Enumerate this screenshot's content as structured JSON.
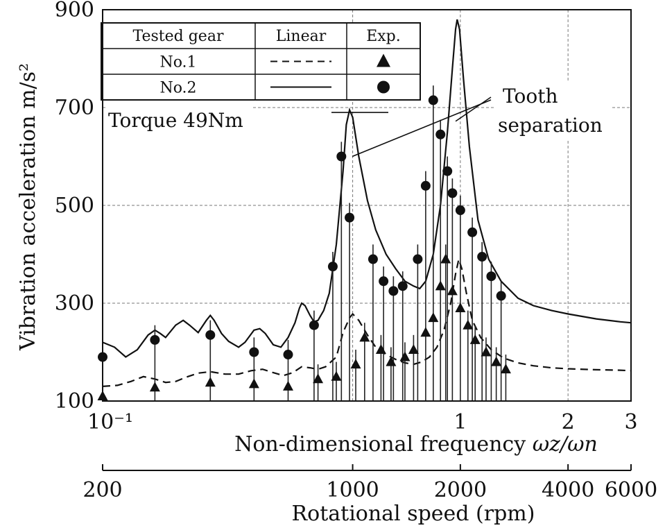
{
  "chart_data": {
    "type": "line",
    "xlabel": "Non-dimensional frequency ω_z/ω_n",
    "xlabel_main": "Non-dimensional frequency ",
    "xlabel_symbol": "ωz/ωn",
    "x2label": "Rotational speed (rpm)",
    "ylabel": "Vibration acceleration m/s²",
    "x_scale": "log",
    "xlim": [
      0.1,
      3.0
    ],
    "ylim": [
      100,
      900
    ],
    "grid": true,
    "x_ticks": [
      {
        "value": 0.1,
        "label": "10⁻¹"
      },
      {
        "value": 1,
        "label": "1"
      },
      {
        "value": 2,
        "label": "2"
      },
      {
        "value": 3,
        "label": "3"
      }
    ],
    "y_ticks": [
      {
        "value": 100,
        "label": "100"
      },
      {
        "value": 300,
        "label": "300"
      },
      {
        "value": 500,
        "label": "500"
      },
      {
        "value": 700,
        "label": "700"
      },
      {
        "value": 900,
        "label": "900"
      }
    ],
    "rpm_ticks": [
      {
        "label": "200",
        "x": 0.1
      },
      {
        "label": "1000",
        "x": 0.5
      },
      {
        "label": "2000",
        "x": 1.0
      },
      {
        "label": "4000",
        "x": 2.0
      },
      {
        "label": "6000",
        "x": 3.0
      }
    ],
    "legend": {
      "placement": "top-left",
      "headers": [
        "Tested gear",
        "Linear",
        "Exp."
      ],
      "rows": [
        {
          "label": "No.1",
          "line": "dashed",
          "marker": "triangle"
        },
        {
          "label": "No.2",
          "line": "solid",
          "marker": "circle"
        }
      ]
    },
    "annotations": {
      "torque": "Torque 49Nm",
      "tooth_line1": "Tooth",
      "tooth_line2": "separation"
    },
    "series": [
      {
        "name": "No.2",
        "kind": "linear",
        "style": "solid",
        "points": [
          [
            0.1,
            220
          ],
          [
            0.108,
            210
          ],
          [
            0.116,
            190
          ],
          [
            0.125,
            205
          ],
          [
            0.134,
            235
          ],
          [
            0.14,
            245
          ],
          [
            0.145,
            238
          ],
          [
            0.15,
            230
          ],
          [
            0.16,
            255
          ],
          [
            0.168,
            265
          ],
          [
            0.175,
            255
          ],
          [
            0.185,
            240
          ],
          [
            0.195,
            265
          ],
          [
            0.2,
            275
          ],
          [
            0.205,
            265
          ],
          [
            0.215,
            238
          ],
          [
            0.225,
            222
          ],
          [
            0.24,
            210
          ],
          [
            0.25,
            220
          ],
          [
            0.265,
            245
          ],
          [
            0.275,
            248
          ],
          [
            0.285,
            238
          ],
          [
            0.3,
            215
          ],
          [
            0.315,
            210
          ],
          [
            0.33,
            230
          ],
          [
            0.345,
            260
          ],
          [
            0.355,
            290
          ],
          [
            0.36,
            300
          ],
          [
            0.368,
            295
          ],
          [
            0.38,
            275
          ],
          [
            0.39,
            262
          ],
          [
            0.4,
            265
          ],
          [
            0.415,
            285
          ],
          [
            0.43,
            320
          ],
          [
            0.45,
            420
          ],
          [
            0.47,
            570
          ],
          [
            0.48,
            665
          ],
          [
            0.49,
            695
          ],
          [
            0.5,
            680
          ],
          [
            0.52,
            600
          ],
          [
            0.55,
            510
          ],
          [
            0.58,
            450
          ],
          [
            0.62,
            400
          ],
          [
            0.66,
            370
          ],
          [
            0.7,
            345
          ],
          [
            0.74,
            335
          ],
          [
            0.77,
            330
          ],
          [
            0.8,
            345
          ],
          [
            0.84,
            400
          ],
          [
            0.88,
            500
          ],
          [
            0.92,
            650
          ],
          [
            0.95,
            780
          ],
          [
            0.97,
            860
          ],
          [
            0.98,
            880
          ],
          [
            0.995,
            860
          ],
          [
            1.02,
            760
          ],
          [
            1.06,
            620
          ],
          [
            1.12,
            470
          ],
          [
            1.2,
            390
          ],
          [
            1.3,
            345
          ],
          [
            1.45,
            310
          ],
          [
            1.6,
            295
          ],
          [
            1.8,
            285
          ],
          [
            2.0,
            278
          ],
          [
            2.4,
            268
          ],
          [
            2.8,
            262
          ],
          [
            3.0,
            260
          ]
        ]
      },
      {
        "name": "No.1",
        "kind": "linear",
        "style": "dashed",
        "points": [
          [
            0.1,
            130
          ],
          [
            0.11,
            132
          ],
          [
            0.12,
            140
          ],
          [
            0.13,
            150
          ],
          [
            0.14,
            145
          ],
          [
            0.15,
            138
          ],
          [
            0.16,
            140
          ],
          [
            0.17,
            148
          ],
          [
            0.185,
            157
          ],
          [
            0.2,
            160
          ],
          [
            0.22,
            155
          ],
          [
            0.24,
            155
          ],
          [
            0.26,
            162
          ],
          [
            0.28,
            165
          ],
          [
            0.3,
            158
          ],
          [
            0.32,
            152
          ],
          [
            0.34,
            158
          ],
          [
            0.36,
            170
          ],
          [
            0.38,
            168
          ],
          [
            0.4,
            165
          ],
          [
            0.42,
            170
          ],
          [
            0.45,
            190
          ],
          [
            0.47,
            240
          ],
          [
            0.49,
            270
          ],
          [
            0.5,
            278
          ],
          [
            0.52,
            265
          ],
          [
            0.55,
            235
          ],
          [
            0.58,
            210
          ],
          [
            0.62,
            195
          ],
          [
            0.66,
            185
          ],
          [
            0.7,
            178
          ],
          [
            0.74,
            175
          ],
          [
            0.78,
            180
          ],
          [
            0.82,
            190
          ],
          [
            0.86,
            210
          ],
          [
            0.9,
            245
          ],
          [
            0.94,
            300
          ],
          [
            0.97,
            360
          ],
          [
            0.99,
            390
          ],
          [
            1.01,
            370
          ],
          [
            1.04,
            320
          ],
          [
            1.08,
            265
          ],
          [
            1.14,
            230
          ],
          [
            1.22,
            205
          ],
          [
            1.32,
            188
          ],
          [
            1.45,
            178
          ],
          [
            1.6,
            172
          ],
          [
            1.8,
            168
          ],
          [
            2.0,
            166
          ],
          [
            2.4,
            164
          ],
          [
            2.8,
            163
          ],
          [
            3.0,
            162
          ]
        ]
      },
      {
        "name": "No.2",
        "kind": "exp",
        "marker": "circle",
        "points": [
          [
            0.1,
            190
          ],
          [
            0.14,
            225
          ],
          [
            0.2,
            235
          ],
          [
            0.265,
            200
          ],
          [
            0.33,
            195
          ],
          [
            0.39,
            255
          ],
          [
            0.44,
            375
          ],
          [
            0.465,
            600
          ],
          [
            0.49,
            475
          ],
          [
            0.57,
            390
          ],
          [
            0.61,
            345
          ],
          [
            0.65,
            325
          ],
          [
            0.69,
            335
          ],
          [
            0.76,
            390
          ],
          [
            0.8,
            540
          ],
          [
            0.84,
            715
          ],
          [
            0.88,
            645
          ],
          [
            0.92,
            570
          ],
          [
            0.95,
            525
          ],
          [
            1.0,
            490
          ],
          [
            1.08,
            445
          ],
          [
            1.15,
            395
          ],
          [
            1.22,
            355
          ],
          [
            1.3,
            315
          ]
        ]
      },
      {
        "name": "No.1",
        "kind": "exp",
        "marker": "triangle",
        "points": [
          [
            0.1,
            110
          ],
          [
            0.14,
            128
          ],
          [
            0.2,
            138
          ],
          [
            0.265,
            135
          ],
          [
            0.33,
            130
          ],
          [
            0.4,
            145
          ],
          [
            0.45,
            150
          ],
          [
            0.51,
            175
          ],
          [
            0.54,
            230
          ],
          [
            0.6,
            205
          ],
          [
            0.64,
            180
          ],
          [
            0.7,
            190
          ],
          [
            0.74,
            205
          ],
          [
            0.8,
            240
          ],
          [
            0.84,
            270
          ],
          [
            0.88,
            335
          ],
          [
            0.91,
            390
          ],
          [
            0.95,
            325
          ],
          [
            1.0,
            290
          ],
          [
            1.05,
            255
          ],
          [
            1.1,
            225
          ],
          [
            1.18,
            200
          ],
          [
            1.26,
            180
          ],
          [
            1.34,
            165
          ]
        ]
      }
    ]
  }
}
